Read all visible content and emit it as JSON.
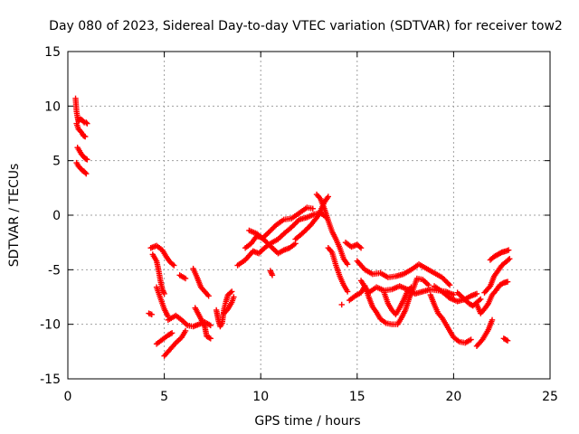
{
  "chart_data": {
    "type": "scatter",
    "title": "Day 080 of 2023, Sidereal Day-to-day VTEC variation (SDTVAR) for receiver tow2",
    "xlabel": "GPS time / hours",
    "ylabel": "SDTVAR / TECUs",
    "xlim": [
      0,
      25
    ],
    "ylim": [
      -15,
      15
    ],
    "xticks": [
      0,
      5,
      10,
      15,
      20,
      25
    ],
    "yticks": [
      -15,
      -10,
      -5,
      0,
      5,
      10,
      15
    ],
    "xtick_labels": [
      "0",
      "5",
      "10",
      "15",
      "20",
      "25"
    ],
    "ytick_labels": [
      "-15",
      "-10",
      "-5",
      "0",
      "5",
      "10",
      "15"
    ],
    "grid": true,
    "marker": "+",
    "color": "#ff0000",
    "series": [
      {
        "name": "SDTVAR",
        "segments": [
          [
            [
              0.4,
              10.7
            ],
            [
              0.45,
              9.5
            ],
            [
              0.5,
              9.0
            ],
            [
              0.55,
              8.6
            ],
            [
              0.65,
              8.8
            ],
            [
              0.75,
              8.7
            ],
            [
              0.85,
              8.5
            ],
            [
              0.95,
              8.5
            ],
            [
              1.0,
              8.4
            ]
          ],
          [
            [
              0.45,
              8.4
            ],
            [
              0.55,
              7.9
            ],
            [
              0.7,
              7.6
            ],
            [
              0.8,
              7.3
            ],
            [
              0.9,
              7.2
            ]
          ],
          [
            [
              0.5,
              6.2
            ],
            [
              0.6,
              5.9
            ],
            [
              0.7,
              5.6
            ],
            [
              0.8,
              5.4
            ],
            [
              0.9,
              5.2
            ],
            [
              1.0,
              5.1
            ]
          ],
          [
            [
              0.45,
              4.8
            ],
            [
              0.55,
              4.5
            ],
            [
              0.65,
              4.3
            ],
            [
              0.75,
              4.1
            ],
            [
              0.85,
              4.0
            ],
            [
              0.95,
              3.8
            ]
          ],
          [
            [
              4.3,
              -3.0
            ],
            [
              4.6,
              -2.8
            ],
            [
              4.9,
              -3.2
            ],
            [
              5.1,
              -3.8
            ],
            [
              5.3,
              -4.3
            ],
            [
              5.5,
              -4.6
            ]
          ],
          [
            [
              4.4,
              -3.6
            ],
            [
              4.6,
              -4.2
            ],
            [
              4.7,
              -5.0
            ],
            [
              4.8,
              -6.0
            ],
            [
              4.9,
              -6.8
            ],
            [
              5.0,
              -7.2
            ]
          ],
          [
            [
              4.6,
              -6.6
            ],
            [
              4.8,
              -7.6
            ],
            [
              5.0,
              -8.6
            ],
            [
              5.2,
              -9.3
            ]
          ],
          [
            [
              4.2,
              -9.0
            ],
            [
              4.35,
              -9.1
            ]
          ],
          [
            [
              4.6,
              -11.8
            ],
            [
              4.9,
              -11.4
            ],
            [
              5.2,
              -11.0
            ],
            [
              5.4,
              -10.8
            ]
          ],
          [
            [
              5.0,
              -12.9
            ],
            [
              5.3,
              -12.3
            ],
            [
              5.6,
              -11.7
            ],
            [
              5.9,
              -11.2
            ],
            [
              6.1,
              -10.6
            ]
          ],
          [
            [
              5.2,
              -9.6
            ],
            [
              5.6,
              -9.2
            ],
            [
              5.9,
              -9.6
            ],
            [
              6.2,
              -10.1
            ],
            [
              6.5,
              -10.2
            ],
            [
              6.8,
              -10.0
            ],
            [
              7.1,
              -9.8
            ],
            [
              7.4,
              -10.1
            ]
          ],
          [
            [
              5.8,
              -5.5
            ],
            [
              6.1,
              -5.8
            ]
          ],
          [
            [
              6.5,
              -4.9
            ],
            [
              6.7,
              -5.7
            ],
            [
              6.9,
              -6.6
            ],
            [
              7.1,
              -7.0
            ],
            [
              7.3,
              -7.4
            ]
          ],
          [
            [
              6.6,
              -8.5
            ],
            [
              6.9,
              -9.5
            ],
            [
              7.1,
              -10.2
            ],
            [
              7.2,
              -11.1
            ],
            [
              7.4,
              -11.3
            ]
          ],
          [
            [
              7.7,
              -8.7
            ],
            [
              7.8,
              -9.6
            ],
            [
              7.9,
              -10.2
            ],
            [
              8.0,
              -9.9
            ],
            [
              8.1,
              -8.6
            ],
            [
              8.2,
              -7.9
            ],
            [
              8.3,
              -7.3
            ],
            [
              8.5,
              -7.0
            ]
          ],
          [
            [
              8.1,
              -9.0
            ],
            [
              8.3,
              -8.6
            ],
            [
              8.5,
              -8.0
            ],
            [
              8.6,
              -7.5
            ]
          ],
          [
            [
              8.8,
              -4.6
            ],
            [
              9.2,
              -4.1
            ],
            [
              9.6,
              -3.3
            ],
            [
              9.9,
              -3.5
            ],
            [
              10.2,
              -3.0
            ],
            [
              10.5,
              -2.6
            ],
            [
              10.9,
              -2.2
            ],
            [
              11.2,
              -1.7
            ],
            [
              11.6,
              -1.1
            ],
            [
              12.0,
              -0.4
            ],
            [
              12.4,
              -0.2
            ],
            [
              12.8,
              0.1
            ],
            [
              13.1,
              0.2
            ],
            [
              13.4,
              -0.2
            ]
          ],
          [
            [
              9.2,
              -3.0
            ],
            [
              9.5,
              -2.6
            ],
            [
              9.8,
              -1.9
            ],
            [
              10.1,
              -2.1
            ],
            [
              10.4,
              -1.6
            ],
            [
              10.8,
              -0.9
            ],
            [
              11.2,
              -0.4
            ],
            [
              11.6,
              -0.3
            ],
            [
              12.0,
              0.2
            ],
            [
              12.4,
              0.7
            ],
            [
              12.7,
              0.6
            ]
          ],
          [
            [
              9.4,
              -1.4
            ],
            [
              9.8,
              -1.7
            ],
            [
              10.2,
              -2.3
            ],
            [
              10.6,
              -3.0
            ],
            [
              10.9,
              -3.5
            ],
            [
              11.2,
              -3.2
            ],
            [
              11.5,
              -3.0
            ],
            [
              11.8,
              -2.6
            ]
          ],
          [
            [
              10.5,
              -5.1
            ],
            [
              10.6,
              -5.5
            ]
          ],
          [
            [
              11.8,
              -2.2
            ],
            [
              12.2,
              -1.6
            ],
            [
              12.6,
              -0.9
            ],
            [
              13.0,
              0.0
            ],
            [
              13.3,
              1.2
            ],
            [
              13.5,
              1.7
            ]
          ],
          [
            [
              12.9,
              1.9
            ],
            [
              13.1,
              1.5
            ],
            [
              13.3,
              0.6
            ],
            [
              13.5,
              -0.5
            ],
            [
              13.7,
              -1.5
            ],
            [
              13.9,
              -2.2
            ],
            [
              14.1,
              -3.0
            ],
            [
              14.3,
              -4.0
            ],
            [
              14.5,
              -4.5
            ]
          ],
          [
            [
              13.5,
              -3.0
            ],
            [
              13.7,
              -3.4
            ],
            [
              13.9,
              -4.6
            ],
            [
              14.1,
              -5.6
            ],
            [
              14.3,
              -6.4
            ],
            [
              14.5,
              -7.0
            ]
          ],
          [
            [
              14.2,
              -8.2
            ]
          ],
          [
            [
              14.4,
              -2.5
            ],
            [
              14.7,
              -2.9
            ],
            [
              15.0,
              -2.7
            ],
            [
              15.2,
              -3.0
            ]
          ],
          [
            [
              14.6,
              -7.8
            ],
            [
              14.9,
              -7.4
            ],
            [
              15.2,
              -7.1
            ],
            [
              15.4,
              -6.5
            ]
          ],
          [
            [
              15.0,
              -4.2
            ],
            [
              15.4,
              -5.0
            ],
            [
              15.8,
              -5.4
            ],
            [
              16.2,
              -5.3
            ],
            [
              16.6,
              -5.7
            ],
            [
              17.0,
              -5.6
            ],
            [
              17.4,
              -5.4
            ],
            [
              17.8,
              -5.0
            ],
            [
              18.2,
              -4.5
            ],
            [
              18.6,
              -4.9
            ],
            [
              19.0,
              -5.3
            ],
            [
              19.4,
              -5.7
            ],
            [
              19.8,
              -6.4
            ]
          ],
          [
            [
              15.2,
              -6.0
            ],
            [
              15.6,
              -7.1
            ],
            [
              16.0,
              -6.6
            ],
            [
              16.4,
              -6.9
            ],
            [
              16.8,
              -6.8
            ],
            [
              17.2,
              -6.5
            ],
            [
              17.6,
              -6.8
            ],
            [
              18.0,
              -7.2
            ],
            [
              18.4,
              -7.0
            ],
            [
              18.8,
              -6.8
            ],
            [
              19.2,
              -6.9
            ],
            [
              19.6,
              -7.0
            ],
            [
              20.0,
              -7.3
            ]
          ],
          [
            [
              15.4,
              -6.5
            ],
            [
              15.6,
              -7.5
            ],
            [
              15.8,
              -8.4
            ],
            [
              16.0,
              -8.9
            ],
            [
              16.2,
              -9.5
            ],
            [
              16.5,
              -9.9
            ],
            [
              16.8,
              -10.0
            ],
            [
              17.1,
              -10.0
            ],
            [
              17.3,
              -9.4
            ],
            [
              17.5,
              -8.7
            ],
            [
              17.7,
              -7.6
            ],
            [
              17.9,
              -6.8
            ],
            [
              18.1,
              -5.8
            ],
            [
              18.4,
              -5.9
            ],
            [
              18.7,
              -6.4
            ]
          ],
          [
            [
              16.4,
              -7.1
            ],
            [
              16.6,
              -8.1
            ],
            [
              16.8,
              -8.7
            ],
            [
              17.0,
              -9.1
            ],
            [
              17.2,
              -8.5
            ],
            [
              17.4,
              -7.8
            ],
            [
              17.6,
              -7.0
            ],
            [
              17.8,
              -6.6
            ]
          ],
          [
            [
              18.8,
              -7.3
            ],
            [
              19.0,
              -8.2
            ],
            [
              19.2,
              -9.0
            ],
            [
              19.4,
              -9.4
            ],
            [
              19.6,
              -10.0
            ],
            [
              19.8,
              -10.6
            ],
            [
              20.0,
              -11.2
            ],
            [
              20.3,
              -11.6
            ],
            [
              20.6,
              -11.7
            ],
            [
              20.9,
              -11.4
            ]
          ],
          [
            [
              19.0,
              -6.5
            ],
            [
              19.4,
              -7.0
            ],
            [
              19.8,
              -7.6
            ],
            [
              20.2,
              -7.9
            ],
            [
              20.6,
              -7.7
            ],
            [
              20.9,
              -7.4
            ],
            [
              21.2,
              -7.2
            ]
          ],
          [
            [
              20.2,
              -7.1
            ],
            [
              20.5,
              -7.6
            ],
            [
              20.8,
              -8.1
            ],
            [
              21.0,
              -8.3
            ],
            [
              21.2,
              -8.0
            ],
            [
              21.4,
              -7.7
            ]
          ],
          [
            [
              21.2,
              -12.0
            ],
            [
              21.5,
              -11.4
            ],
            [
              21.8,
              -10.5
            ],
            [
              22.0,
              -9.6
            ]
          ],
          [
            [
              21.2,
              -8.2
            ],
            [
              21.4,
              -9.0
            ],
            [
              21.6,
              -8.6
            ],
            [
              21.8,
              -8.1
            ],
            [
              22.0,
              -7.3
            ],
            [
              22.2,
              -6.9
            ],
            [
              22.4,
              -6.4
            ],
            [
              22.6,
              -6.2
            ],
            [
              22.8,
              -6.1
            ]
          ],
          [
            [
              21.6,
              -7.1
            ],
            [
              21.9,
              -6.5
            ],
            [
              22.1,
              -5.6
            ],
            [
              22.3,
              -5.1
            ],
            [
              22.5,
              -4.6
            ],
            [
              22.7,
              -4.3
            ],
            [
              22.9,
              -4.0
            ]
          ],
          [
            [
              21.9,
              -4.1
            ],
            [
              22.1,
              -3.8
            ],
            [
              22.3,
              -3.6
            ],
            [
              22.5,
              -3.4
            ],
            [
              22.7,
              -3.3
            ],
            [
              22.85,
              -3.2
            ]
          ],
          [
            [
              22.6,
              -11.3
            ],
            [
              22.8,
              -11.5
            ]
          ]
        ]
      }
    ]
  }
}
